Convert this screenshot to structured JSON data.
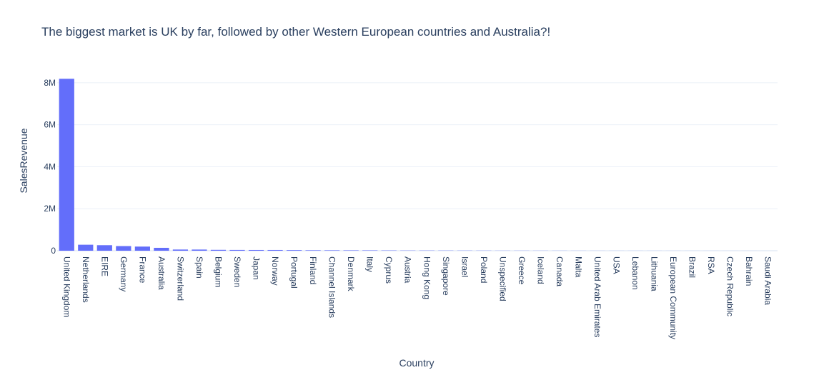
{
  "chart_data": {
    "type": "bar",
    "title": "The biggest market is UK by far, followed by other Western European countries and Australia?!",
    "xlabel": "Country",
    "ylabel": "SalesRevenue",
    "ylim": [
      0,
      8200000
    ],
    "yticks": [
      0,
      2000000,
      4000000,
      6000000,
      8000000
    ],
    "ytick_labels": [
      "0",
      "2M",
      "4M",
      "6M",
      "8M"
    ],
    "grid": true,
    "bar_color": "#636efa",
    "categories": [
      "United Kingdom",
      "Netherlands",
      "EIRE",
      "Germany",
      "France",
      "Australia",
      "Switzerland",
      "Spain",
      "Belgium",
      "Sweden",
      "Japan",
      "Norway",
      "Portugal",
      "Finland",
      "Channel Islands",
      "Denmark",
      "Italy",
      "Cyprus",
      "Austria",
      "Hong Kong",
      "Singapore",
      "Israel",
      "Poland",
      "Unspecified",
      "Greece",
      "Iceland",
      "Canada",
      "Malta",
      "United Arab Emirates",
      "USA",
      "Lebanon",
      "Lithuania",
      "European Community",
      "Brazil",
      "RSA",
      "Czech Republic",
      "Bahrain",
      "Saudi Arabia"
    ],
    "values": [
      8190000,
      285000,
      263000,
      221000,
      197000,
      138000,
      56000,
      55000,
      41000,
      37000,
      35000,
      35000,
      29000,
      22000,
      20000,
      18000,
      17000,
      13000,
      10000,
      10000,
      9000,
      8000,
      7000,
      5000,
      5000,
      4000,
      3700,
      2500,
      1900,
      1700,
      1700,
      1700,
      1300,
      1100,
      1000,
      700,
      550,
      130
    ]
  }
}
